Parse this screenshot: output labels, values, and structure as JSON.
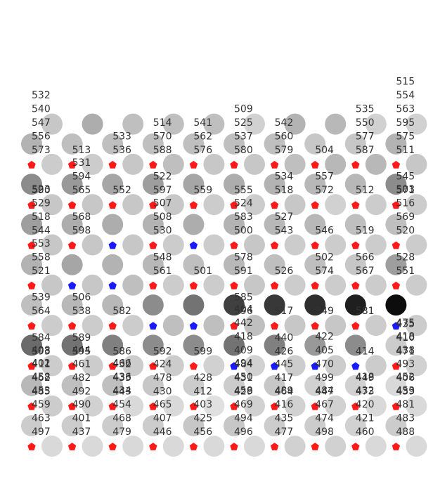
{
  "chart_data": {
    "type": "scatter",
    "title": "",
    "xlabel": "",
    "ylabel": "",
    "grid": false,
    "legend": "none",
    "colors": {
      "marker_red": "#ff1a1a",
      "marker_blue": "#1a1aff",
      "label_text": "#333333"
    },
    "xlim": [
      -0.5,
      9.8
    ],
    "ylim": [
      -0.4,
      9.4
    ],
    "columns": [
      0,
      1,
      2,
      3,
      4,
      5,
      6,
      7,
      8,
      9
    ],
    "rows": [
      0,
      1,
      2,
      3,
      4,
      5,
      6,
      7,
      8,
      9
    ],
    "cells": [
      {
        "row": 0,
        "col": 0,
        "kind": "red",
        "labels": [
          "497",
          "463",
          "459",
          "453",
          "458",
          "402"
        ]
      },
      {
        "row": 0,
        "col": 1,
        "kind": "red",
        "labels": [
          "437",
          "401",
          "490"
        ]
      },
      {
        "row": 0,
        "col": 2,
        "kind": "red",
        "labels": [
          "479",
          "468",
          "454",
          "434",
          "436",
          "466"
        ]
      },
      {
        "row": 0,
        "col": 3,
        "kind": "red",
        "labels": [
          "446",
          "407",
          "465"
        ]
      },
      {
        "row": 0,
        "col": 4,
        "kind": "red",
        "labels": [
          "456",
          "425",
          "403"
        ]
      },
      {
        "row": 0,
        "col": 5,
        "kind": "red",
        "labels": [
          "496",
          "494",
          "469",
          "458",
          "450",
          "494"
        ]
      },
      {
        "row": 0,
        "col": 6,
        "kind": "red",
        "labels": [
          "477",
          "435",
          "416",
          "489"
        ]
      },
      {
        "row": 0,
        "col": 7,
        "kind": "red",
        "labels": [
          "498",
          "474",
          "467",
          "484"
        ]
      },
      {
        "row": 0,
        "col": 8,
        "kind": "red",
        "labels": [
          "460",
          "421",
          "420",
          "432",
          "418"
        ]
      },
      {
        "row": 0,
        "col": 9,
        "kind": "red",
        "labels": [
          "488",
          "483",
          "481",
          "453",
          "452"
        ]
      },
      {
        "row": 1,
        "col": 0,
        "kind": "red",
        "labels": [
          "485",
          "462",
          "411",
          "408"
        ]
      },
      {
        "row": 1,
        "col": 1,
        "kind": "red",
        "labels": [
          "492",
          "482",
          "461",
          "444"
        ]
      },
      {
        "row": 1,
        "col": 2,
        "kind": "red",
        "labels": [
          "443",
          "433",
          "432"
        ]
      },
      {
        "row": 1,
        "col": 3,
        "kind": "red",
        "labels": [
          "430",
          "478",
          "424"
        ]
      },
      {
        "row": 1,
        "col": 4,
        "kind": "red",
        "labels": [
          "412",
          "428"
        ]
      },
      {
        "row": 1,
        "col": 5,
        "kind": "red",
        "labels": [
          "429",
          "431",
          "484",
          "409",
          "418",
          "442",
          "404"
        ]
      },
      {
        "row": 1,
        "col": 6,
        "kind": "red",
        "labels": [
          "464",
          "417",
          "445"
        ]
      },
      {
        "row": 1,
        "col": 7,
        "kind": "red",
        "labels": [
          "447",
          "499",
          "470",
          "405",
          "422"
        ]
      },
      {
        "row": 1,
        "col": 8,
        "kind": "red",
        "labels": [
          "473",
          "449"
        ]
      },
      {
        "row": 1,
        "col": 9,
        "kind": "red",
        "labels": [
          "439",
          "406",
          "493",
          "438",
          "418",
          "475"
        ]
      },
      {
        "row": 2,
        "col": 0,
        "kind": "red",
        "labels": [
          "593",
          "584"
        ]
      },
      {
        "row": 2,
        "col": 1,
        "kind": "red",
        "labels": [
          "595",
          "589"
        ]
      },
      {
        "row": 2,
        "col": 2,
        "kind": "red",
        "labels": [
          "586"
        ]
      },
      {
        "row": 2,
        "col": 3,
        "kind": "red",
        "labels": [
          "592"
        ]
      },
      {
        "row": 2,
        "col": 4,
        "kind": "red",
        "labels": [
          "599"
        ]
      },
      {
        "row": 2,
        "col": 5,
        "kind": "blue",
        "labels": []
      },
      {
        "row": 2,
        "col": 6,
        "kind": "blue",
        "labels": [
          "426",
          "440"
        ]
      },
      {
        "row": 2,
        "col": 7,
        "kind": "blue",
        "labels": []
      },
      {
        "row": 2,
        "col": 8,
        "kind": "blue",
        "labels": [
          "414"
        ]
      },
      {
        "row": 2,
        "col": 9,
        "kind": "red",
        "labels": [
          "471",
          "410",
          "435"
        ]
      },
      {
        "row": 3,
        "col": 0,
        "kind": "red",
        "labels": [
          "564",
          "539"
        ]
      },
      {
        "row": 3,
        "col": 1,
        "kind": "red",
        "labels": [
          "538",
          "506"
        ]
      },
      {
        "row": 3,
        "col": 2,
        "kind": "red",
        "labels": [
          "582"
        ]
      },
      {
        "row": 3,
        "col": 3,
        "kind": "blue",
        "labels": []
      },
      {
        "row": 3,
        "col": 4,
        "kind": "blue",
        "labels": []
      },
      {
        "row": 3,
        "col": 5,
        "kind": "red",
        "labels": [
          "596",
          "585"
        ]
      },
      {
        "row": 3,
        "col": 6,
        "kind": "red",
        "labels": [
          "517"
        ]
      },
      {
        "row": 3,
        "col": 7,
        "kind": "red",
        "labels": [
          "549"
        ]
      },
      {
        "row": 3,
        "col": 8,
        "kind": "red",
        "labels": [
          "581"
        ]
      },
      {
        "row": 3,
        "col": 9,
        "kind": "blue",
        "labels": []
      },
      {
        "row": 4,
        "col": 0,
        "kind": "red",
        "labels": [
          "521",
          "558",
          "553"
        ]
      },
      {
        "row": 4,
        "col": 1,
        "kind": "blue",
        "labels": []
      },
      {
        "row": 4,
        "col": 2,
        "kind": "blue",
        "labels": []
      },
      {
        "row": 4,
        "col": 3,
        "kind": "red",
        "labels": [
          "561",
          "548"
        ]
      },
      {
        "row": 4,
        "col": 4,
        "kind": "red",
        "labels": [
          "501"
        ]
      },
      {
        "row": 4,
        "col": 5,
        "kind": "red",
        "labels": [
          "591",
          "578"
        ]
      },
      {
        "row": 4,
        "col": 6,
        "kind": "red",
        "labels": [
          "526"
        ]
      },
      {
        "row": 4,
        "col": 7,
        "kind": "red",
        "labels": [
          "574",
          "502"
        ]
      },
      {
        "row": 4,
        "col": 8,
        "kind": "red",
        "labels": [
          "567",
          "566"
        ]
      },
      {
        "row": 4,
        "col": 9,
        "kind": "red",
        "labels": [
          "551",
          "528"
        ]
      },
      {
        "row": 5,
        "col": 0,
        "kind": "red",
        "labels": [
          "544",
          "518",
          "529",
          "523"
        ]
      },
      {
        "row": 5,
        "col": 1,
        "kind": "red",
        "labels": [
          "598",
          "568"
        ]
      },
      {
        "row": 5,
        "col": 2,
        "kind": "blue",
        "labels": []
      },
      {
        "row": 5,
        "col": 3,
        "kind": "red",
        "labels": [
          "530",
          "508",
          "507"
        ]
      },
      {
        "row": 5,
        "col": 4,
        "kind": "blue",
        "labels": []
      },
      {
        "row": 5,
        "col": 5,
        "kind": "red",
        "labels": [
          "500",
          "583",
          "524"
        ]
      },
      {
        "row": 5,
        "col": 6,
        "kind": "red",
        "labels": [
          "543",
          "527"
        ]
      },
      {
        "row": 5,
        "col": 7,
        "kind": "red",
        "labels": [
          "546"
        ]
      },
      {
        "row": 5,
        "col": 8,
        "kind": "red",
        "labels": [
          "519"
        ]
      },
      {
        "row": 5,
        "col": 9,
        "kind": "red",
        "labels": [
          "520",
          "569",
          "516",
          "503"
        ]
      },
      {
        "row": 6,
        "col": 0,
        "kind": "red",
        "labels": [
          "590"
        ]
      },
      {
        "row": 6,
        "col": 1,
        "kind": "red",
        "labels": [
          "565",
          "594",
          "531"
        ]
      },
      {
        "row": 6,
        "col": 2,
        "kind": "red",
        "labels": [
          "552"
        ]
      },
      {
        "row": 6,
        "col": 3,
        "kind": "red",
        "labels": [
          "597",
          "522"
        ]
      },
      {
        "row": 6,
        "col": 4,
        "kind": "red",
        "labels": [
          "559"
        ]
      },
      {
        "row": 6,
        "col": 5,
        "kind": "red",
        "labels": [
          "555"
        ]
      },
      {
        "row": 6,
        "col": 6,
        "kind": "red",
        "labels": [
          "518",
          "534"
        ]
      },
      {
        "row": 6,
        "col": 7,
        "kind": "red",
        "labels": [
          "572",
          "557"
        ]
      },
      {
        "row": 6,
        "col": 8,
        "kind": "red",
        "labels": [
          "512"
        ]
      },
      {
        "row": 6,
        "col": 9,
        "kind": "red",
        "labels": [
          "571",
          "545"
        ]
      },
      {
        "row": 7,
        "col": 0,
        "kind": "red",
        "labels": [
          "573",
          "556",
          "547",
          "540",
          "532"
        ]
      },
      {
        "row": 7,
        "col": 1,
        "kind": "red",
        "labels": [
          "513"
        ]
      },
      {
        "row": 7,
        "col": 2,
        "kind": "red",
        "labels": [
          "536",
          "533"
        ]
      },
      {
        "row": 7,
        "col": 3,
        "kind": "red",
        "labels": [
          "588",
          "570",
          "514"
        ]
      },
      {
        "row": 7,
        "col": 4,
        "kind": "red",
        "labels": [
          "576",
          "562",
          "541"
        ]
      },
      {
        "row": 7,
        "col": 5,
        "kind": "red",
        "labels": [
          "580",
          "537",
          "525",
          "509"
        ]
      },
      {
        "row": 7,
        "col": 6,
        "kind": "red",
        "labels": [
          "579",
          "560",
          "542"
        ]
      },
      {
        "row": 7,
        "col": 7,
        "kind": "red",
        "labels": [
          "504"
        ]
      },
      {
        "row": 7,
        "col": 8,
        "kind": "red",
        "labels": [
          "587",
          "577",
          "550",
          "535"
        ]
      },
      {
        "row": 7,
        "col": 9,
        "kind": "red",
        "labels": [
          "511",
          "575",
          "595",
          "563",
          "554",
          "515"
        ]
      }
    ],
    "circles": {
      "note_shade": "gray level 0 (black) .. 1 (white) of each disc",
      "rows": [
        {
          "row": 0,
          "left": [
            0.8,
            0.8,
            0.8,
            0.8,
            0.78,
            0.78,
            0.8,
            0.8,
            0.82,
            0.8
          ],
          "right": [
            0.85,
            0.85,
            0.85,
            0.85,
            0.85,
            0.85,
            0.82,
            0.82,
            0.85,
            0.85
          ]
        },
        {
          "row": 1,
          "left": [
            0.72,
            0.75,
            0.75,
            0.78,
            0.8,
            0.8,
            0.78,
            0.82,
            0.82,
            0.85
          ],
          "right": [
            0.8,
            0.82,
            0.85,
            0.85,
            0.88,
            0.82,
            0.82,
            0.82,
            0.85,
            0.85
          ]
        },
        {
          "row": 2,
          "left": [
            0.42,
            0.45,
            0.5,
            0.55,
            0.55,
            0.45,
            0.5,
            0.6,
            0.55,
            0.8
          ],
          "right": [
            0.8,
            0.8,
            0.8,
            0.8,
            0.82,
            0.82,
            0.8,
            0.8,
            0.8,
            0.82
          ]
        },
        {
          "row": 3,
          "left": [
            0.75,
            0.72,
            0.72,
            0.55,
            0.45,
            0.25,
            0.22,
            0.18,
            0.12,
            0.05
          ],
          "right": [
            0.8,
            0.8,
            0.8,
            0.75,
            0.75,
            0.75,
            0.78,
            0.78,
            0.8,
            0.8
          ]
        },
        {
          "row": 4,
          "left": [
            0.7,
            0.65,
            0.7,
            0.72,
            0.75,
            0.72,
            0.75,
            0.75,
            0.78,
            0.62
          ],
          "right": [
            0.78,
            0.78,
            0.75,
            0.8,
            0.8,
            0.78,
            0.8,
            0.8,
            0.8,
            0.8
          ]
        },
        {
          "row": 5,
          "left": [
            0.62,
            0.68,
            0.68,
            0.7,
            0.68,
            0.7,
            0.72,
            0.72,
            0.75,
            0.75
          ],
          "right": [
            0.78,
            0.78,
            0.78,
            0.8,
            0.8,
            0.78,
            0.8,
            0.8,
            0.8,
            0.8
          ]
        },
        {
          "row": 6,
          "left": [
            0.55,
            0.6,
            0.65,
            0.62,
            0.65,
            0.68,
            0.7,
            0.72,
            0.72,
            0.55
          ],
          "right": [
            0.78,
            0.78,
            0.78,
            0.78,
            0.8,
            0.8,
            0.78,
            0.82,
            0.8,
            0.8
          ]
        },
        {
          "row": 7,
          "left": [
            0.7,
            0.75,
            0.75,
            0.75,
            0.75,
            0.75,
            0.75,
            0.78,
            0.78,
            0.7
          ],
          "right": [
            0.8,
            0.8,
            0.78,
            0.75,
            0.78,
            0.78,
            0.75,
            0.72,
            0.72,
            0.78
          ]
        },
        {
          "row": 8,
          "left": [],
          "right": [
            0.78,
            0.68,
            0.75,
            0.75,
            0.75,
            0.82,
            0.7,
            0.72,
            0.82,
            0.82
          ]
        }
      ]
    }
  }
}
